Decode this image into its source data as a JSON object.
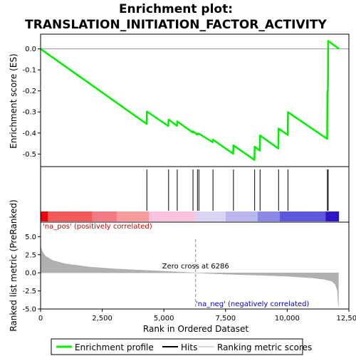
{
  "chart_data": {
    "type": "line",
    "title_line1": "Enrichment plot:",
    "title_line2": "TRANSLATION_INITIATION_FACTOR_ACTIVITY",
    "xlabel": "Rank in Ordered Dataset",
    "ylabel_top": "Enrichment score (ES)",
    "ylabel_bottom": "Ranked list metric (PreRanked)",
    "xlim": [
      0,
      12500
    ],
    "ylim_top": [
      -0.56,
      0.07
    ],
    "ylim_bottom": [
      -5,
      7
    ],
    "x_ticks": [
      0,
      2500,
      5000,
      7500,
      10000,
      12500
    ],
    "x_tick_labels": [
      "0",
      "2,500",
      "5,000",
      "7,500",
      "10,000",
      "12,500"
    ],
    "y_ticks_top": [
      0.0,
      -0.1,
      -0.2,
      -0.3,
      -0.4,
      -0.5
    ],
    "y_tick_labels_top": [
      "0.0",
      "-0.1",
      "-0.2",
      "-0.3",
      "-0.4",
      "-0.5"
    ],
    "y_ticks_bottom": [
      5.0,
      2.5,
      0.0,
      -2.5,
      -5.0
    ],
    "y_tick_labels_bottom": [
      "5.0",
      "2.5",
      "0.0",
      "-2.5",
      "-5.0"
    ],
    "n_genes": 12100,
    "hits": [
      4310,
      5190,
      5540,
      6180,
      6360,
      6420,
      6990,
      7820,
      8680,
      8900,
      9650,
      10030,
      11630,
      11660
    ],
    "es_curve": [
      [
        0,
        0.0
      ],
      [
        4300,
        -0.357
      ],
      [
        4310,
        -0.298
      ],
      [
        5180,
        -0.367
      ],
      [
        5190,
        -0.336
      ],
      [
        5530,
        -0.366
      ],
      [
        5540,
        -0.345
      ],
      [
        6170,
        -0.398
      ],
      [
        6180,
        -0.392
      ],
      [
        6350,
        -0.408
      ],
      [
        6360,
        -0.402
      ],
      [
        6410,
        -0.406
      ],
      [
        6420,
        -0.403
      ],
      [
        6980,
        -0.444
      ],
      [
        6990,
        -0.432
      ],
      [
        7810,
        -0.499
      ],
      [
        7820,
        -0.459
      ],
      [
        8670,
        -0.528
      ],
      [
        8680,
        -0.465
      ],
      [
        8890,
        -0.484
      ],
      [
        8900,
        -0.412
      ],
      [
        9640,
        -0.474
      ],
      [
        9650,
        -0.379
      ],
      [
        10020,
        -0.409
      ],
      [
        10030,
        -0.301
      ],
      [
        11620,
        -0.428
      ],
      [
        11630,
        -0.2
      ],
      [
        11650,
        -0.2
      ],
      [
        11660,
        0.038
      ],
      [
        12100,
        0.0
      ]
    ],
    "zero_cross_rank": 6286,
    "zero_cross_label": "Zero cross at 6286",
    "pos_label": "'na_pos' (positively correlated)",
    "neg_label": "'na_neg' (negatively correlated)",
    "metric_curve": [
      [
        0,
        3.7
      ],
      [
        60,
        3.0
      ],
      [
        200,
        2.3
      ],
      [
        500,
        1.7
      ],
      [
        1000,
        1.25
      ],
      [
        2000,
        0.8
      ],
      [
        3000,
        0.55
      ],
      [
        4000,
        0.38
      ],
      [
        5000,
        0.22
      ],
      [
        6286,
        0.0
      ],
      [
        7000,
        -0.12
      ],
      [
        8000,
        -0.25
      ],
      [
        9000,
        -0.35
      ],
      [
        10000,
        -0.48
      ],
      [
        11000,
        -0.7
      ],
      [
        11500,
        -0.9
      ],
      [
        11800,
        -1.15
      ],
      [
        11950,
        -1.6
      ],
      [
        12030,
        -2.4
      ],
      [
        12080,
        -4.6
      ]
    ],
    "gradient_segments": [
      {
        "from": 0,
        "to": 300,
        "color": "#e8000a"
      },
      {
        "from": 300,
        "to": 2100,
        "color": "#f25a5a"
      },
      {
        "from": 2100,
        "to": 3100,
        "color": "#f77a83"
      },
      {
        "from": 3100,
        "to": 4400,
        "color": "#f99aa1"
      },
      {
        "from": 4400,
        "to": 6286,
        "color": "#fac2dc"
      },
      {
        "from": 6286,
        "to": 7500,
        "color": "#d8d4f3"
      },
      {
        "from": 7500,
        "to": 8800,
        "color": "#b8b6ef"
      },
      {
        "from": 8800,
        "to": 9700,
        "color": "#8a88e6"
      },
      {
        "from": 9700,
        "to": 11550,
        "color": "#5e58dc"
      },
      {
        "from": 11550,
        "to": 12100,
        "color": "#2c16c8"
      }
    ],
    "colors": {
      "es_line": "#00ee00",
      "hits": "#000000",
      "metric_fill": "#b0b0b0",
      "pos_text": "#cc0000",
      "neg_text": "#0000cc",
      "zero_line": "#888888"
    },
    "legend": [
      {
        "label": "Enrichment profile"
      },
      {
        "label": "Hits"
      },
      {
        "label": "Ranking metric scores"
      }
    ]
  }
}
